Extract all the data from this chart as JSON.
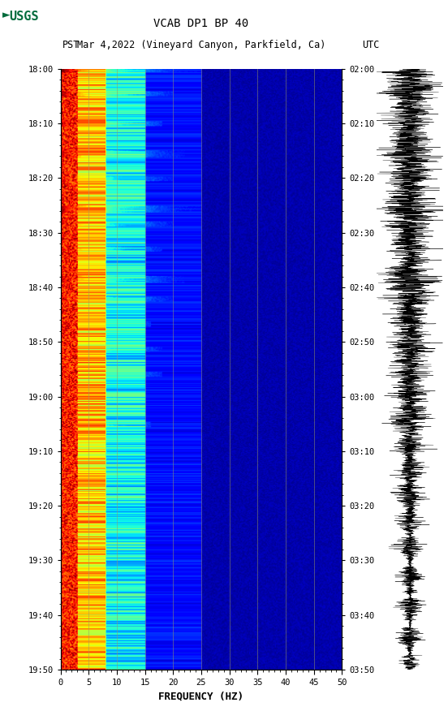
{
  "title_line1": "VCAB DP1 BP 40",
  "title_line2_pst": "PST",
  "title_line2_mid": "Mar 4,2022 (Vineyard Canyon, Parkfield, Ca)",
  "title_line2_utc": "UTC",
  "xlabel": "FREQUENCY (HZ)",
  "freq_min": 0,
  "freq_max": 50,
  "freq_ticks": [
    0,
    5,
    10,
    15,
    20,
    25,
    30,
    35,
    40,
    45,
    50
  ],
  "pst_labels": [
    "18:00",
    "18:10",
    "18:20",
    "18:30",
    "18:40",
    "18:50",
    "19:00",
    "19:10",
    "19:20",
    "19:30",
    "19:40",
    "19:50"
  ],
  "utc_labels": [
    "02:00",
    "02:10",
    "02:20",
    "02:30",
    "02:40",
    "02:50",
    "03:00",
    "03:10",
    "03:20",
    "03:30",
    "03:40",
    "03:50"
  ],
  "n_time_steps": 600,
  "n_freq_bins": 250,
  "bg_color": "#ffffff",
  "colormap": "jet",
  "grid_color": "#999966",
  "grid_alpha": 0.6,
  "usgs_green": "#006B3C",
  "event_rows": [
    0,
    5,
    10,
    22,
    32,
    42,
    52,
    62,
    72,
    82,
    92,
    102,
    112,
    122,
    132,
    142,
    152,
    162,
    172,
    182,
    192,
    202,
    212,
    222,
    232,
    242,
    252,
    262,
    272,
    282,
    292,
    302,
    312,
    322,
    332,
    342,
    352,
    362,
    372,
    382,
    392,
    402,
    412,
    422,
    432,
    442,
    452,
    462,
    472,
    482,
    492,
    502,
    512,
    522,
    532,
    542,
    552,
    562,
    572,
    582,
    592,
    598
  ],
  "event_strengths": [
    1.0,
    0.9,
    0.85,
    0.95,
    0.7,
    0.9,
    0.85,
    0.6,
    0.75,
    0.8,
    0.5,
    0.65,
    0.9,
    0.8,
    0.7,
    0.6,
    0.5,
    0.55,
    0.6,
    0.5,
    0.45,
    0.5,
    0.55,
    0.6,
    0.5,
    0.45,
    0.5,
    0.55,
    0.4,
    0.45,
    0.5,
    0.45,
    0.4,
    0.35,
    0.4,
    0.45,
    0.5,
    0.45,
    0.4,
    0.35,
    0.3,
    0.35,
    0.4,
    0.35,
    0.3,
    0.35,
    0.3,
    0.35,
    0.3,
    0.25,
    0.3,
    0.35,
    0.3,
    0.25,
    0.3,
    0.25,
    0.2,
    0.25,
    0.3,
    0.25,
    0.2,
    0.15
  ]
}
